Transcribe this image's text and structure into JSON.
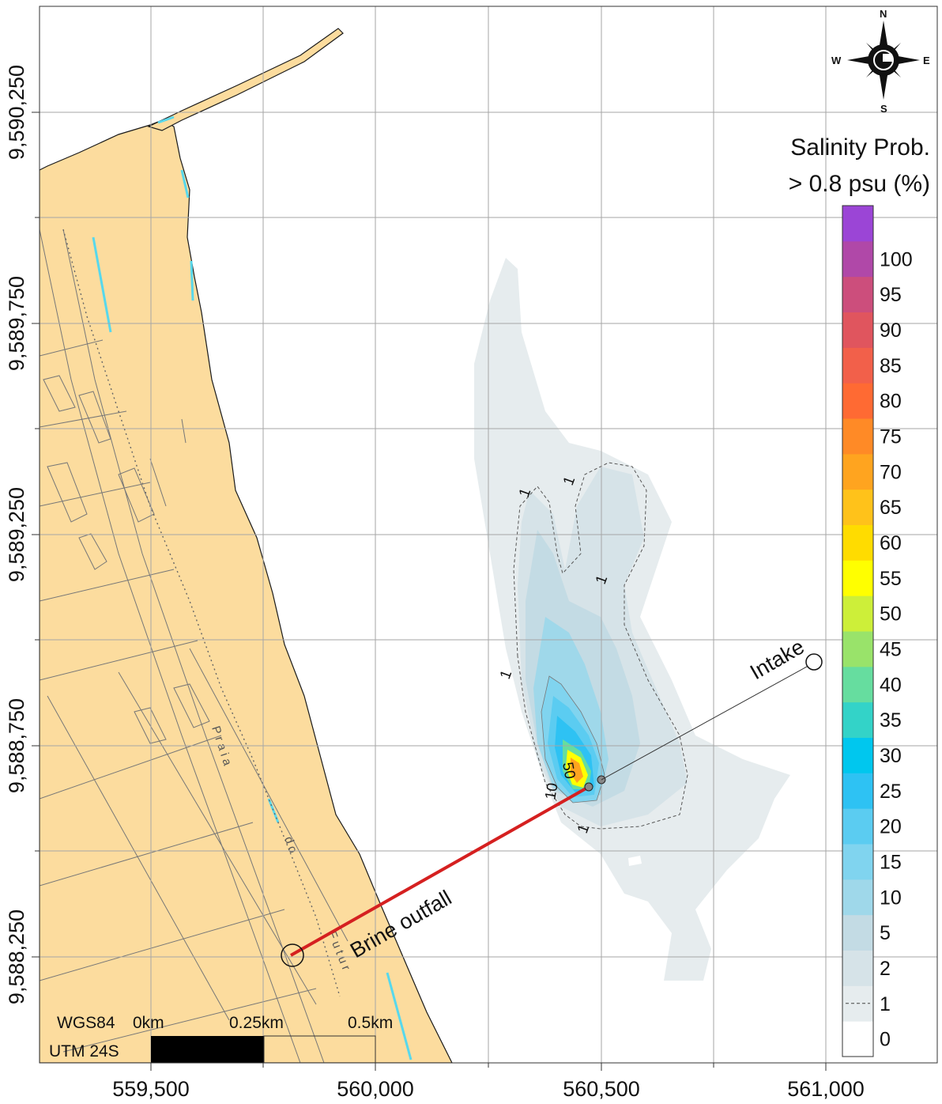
{
  "map": {
    "legend": {
      "title_line1": "Salinity Prob.",
      "title_line2": "> 0.8 psu (%)",
      "classes": [
        {
          "label": "0",
          "color": "#ffffff"
        },
        {
          "label": "1",
          "color": "#e6ecee"
        },
        {
          "label": "2",
          "color": "#d6e3e8"
        },
        {
          "label": "5",
          "color": "#c3dbe4"
        },
        {
          "label": "10",
          "color": "#9fd8ea"
        },
        {
          "label": "15",
          "color": "#80d4ef"
        },
        {
          "label": "20",
          "color": "#5bccf1"
        },
        {
          "label": "25",
          "color": "#2ec2f3"
        },
        {
          "label": "30",
          "color": "#00c7ee"
        },
        {
          "label": "35",
          "color": "#33d3c8"
        },
        {
          "label": "40",
          "color": "#66dd9f"
        },
        {
          "label": "45",
          "color": "#99e36a"
        },
        {
          "label": "50",
          "color": "#cdef39"
        },
        {
          "label": "55",
          "color": "#ffff00"
        },
        {
          "label": "60",
          "color": "#ffdc00"
        },
        {
          "label": "65",
          "color": "#ffc21a"
        },
        {
          "label": "70",
          "color": "#ffa41f"
        },
        {
          "label": "75",
          "color": "#ff8a26"
        },
        {
          "label": "80",
          "color": "#ff6a33"
        },
        {
          "label": "85",
          "color": "#f2604a"
        },
        {
          "label": "90",
          "color": "#e0555e"
        },
        {
          "label": "95",
          "color": "#cc4e7c"
        },
        {
          "label": "100",
          "color": "#b048a8"
        },
        {
          "label": "",
          "color": "#9b45d6"
        }
      ],
      "dashed_class_label": "1"
    },
    "x_ticks": [
      "559,500",
      "560,000",
      "560,500",
      "561,000"
    ],
    "y_ticks": [
      "9,590,250",
      "9,589,750",
      "9,589,250",
      "9,588,750",
      "9,588,250"
    ],
    "annotations": {
      "intake": "Intake",
      "brine_outfall": "Brine outfall",
      "contour_1": "1",
      "contour_10": "10",
      "contour_50": "50"
    },
    "street_labels": [
      "P r a i a",
      "d o",
      "F u t u r"
    ],
    "scale_bar": {
      "datum": "WGS84",
      "projection": "UTM 24S",
      "labels": [
        "0km",
        "0.25km",
        "0.5km"
      ]
    },
    "compass": {
      "n": "N",
      "s": "S",
      "e": "E",
      "w": "W"
    },
    "colors": {
      "land": "#fcdc9e",
      "coast_line": "#1a1a1a",
      "shoreline_water": "#58d8ec",
      "outfall_pipe": "#d52020",
      "grid": "#a6a6a6"
    }
  }
}
